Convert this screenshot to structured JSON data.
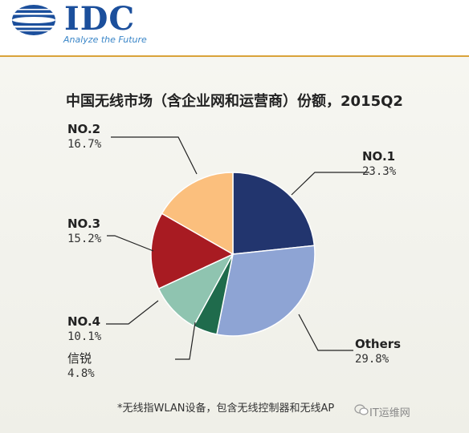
{
  "brand": {
    "name": "IDC",
    "tagline": "Analyze the Future"
  },
  "chart_data": {
    "type": "pie",
    "title": "中国无线市场（含企业网和运营商）份额，2015Q2",
    "slices": [
      {
        "label": "NO.1",
        "value": 23.3,
        "display": "23.3%",
        "color": "#22356e"
      },
      {
        "label": "Others",
        "value": 29.8,
        "display": "29.8%",
        "color": "#8ea4d4"
      },
      {
        "label": "信锐",
        "value": 4.8,
        "display": "4.8%",
        "color": "#1f6b4c"
      },
      {
        "label": "NO.4",
        "value": 10.1,
        "display": "10.1%",
        "color": "#8fc4b0"
      },
      {
        "label": "NO.3",
        "value": 15.2,
        "display": "15.2%",
        "color": "#a81b22"
      },
      {
        "label": "NO.2",
        "value": 16.7,
        "display": "16.7%",
        "color": "#fbbf7d"
      }
    ],
    "footnote": "*无线指WLAN设备，包含无线控制器和无线AP"
  },
  "watermark": "IT运维网"
}
